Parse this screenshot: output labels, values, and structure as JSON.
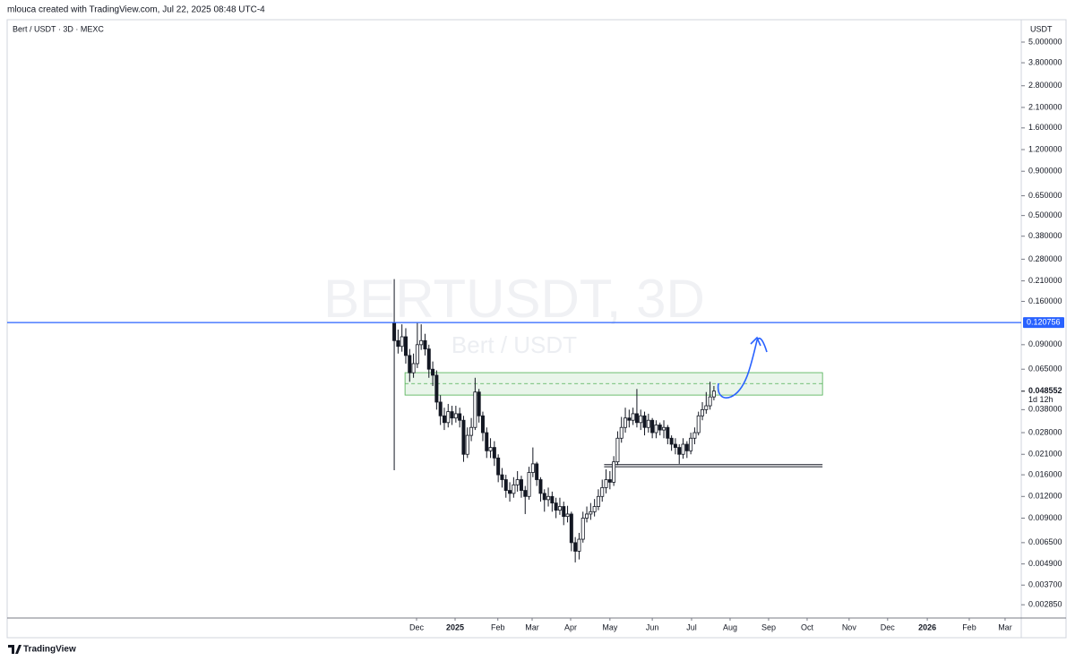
{
  "chart_data": {
    "type": "candlestick",
    "header": "mlouca created with TradingView.com, Jul 22, 2025 08:48 UTC-4",
    "title": "Bert / USDT · 3D · MEXC",
    "watermark": "BERTUSDT, 3D",
    "watermark_sub": "Bert / USDT",
    "currency": "USDT",
    "footer": "TradingView",
    "log_scale": true,
    "up_color": "#ffffff",
    "down_color": "#131722",
    "ylim": [
      0.00239,
      6.73
    ],
    "yticks": [
      {
        "value": 5,
        "label": "5.000000"
      },
      {
        "value": 3.8,
        "label": "3.800000"
      },
      {
        "value": 2.8,
        "label": "2.800000"
      },
      {
        "value": 2.1,
        "label": "2.100000"
      },
      {
        "value": 1.6,
        "label": "1.600000"
      },
      {
        "value": 1.2,
        "label": "1.200000"
      },
      {
        "value": 0.9,
        "label": "0.900000"
      },
      {
        "value": 0.65,
        "label": "0.650000"
      },
      {
        "value": 0.5,
        "label": "0.500000"
      },
      {
        "value": 0.38,
        "label": "0.380000"
      },
      {
        "value": 0.28,
        "label": "0.280000"
      },
      {
        "value": 0.21,
        "label": "0.210000"
      },
      {
        "value": 0.16,
        "label": "0.160000"
      },
      {
        "value": 0.09,
        "label": "0.090000"
      },
      {
        "value": 0.065,
        "label": "0.065000"
      },
      {
        "value": 0.038,
        "label": "0.038000"
      },
      {
        "value": 0.028,
        "label": "0.028000"
      },
      {
        "value": 0.021,
        "label": "0.021000"
      },
      {
        "value": 0.016,
        "label": "0.016000"
      },
      {
        "value": 0.012,
        "label": "0.012000"
      },
      {
        "value": 0.009,
        "label": "0.009000"
      },
      {
        "value": 0.0065,
        "label": "0.006500"
      },
      {
        "value": 0.0049,
        "label": "0.004900"
      },
      {
        "value": 0.0037,
        "label": "0.003700"
      },
      {
        "value": 0.00285,
        "label": "0.002850"
      }
    ],
    "xlim": [
      -100.5,
      162.8
    ],
    "xticks": [
      {
        "value": 5.8,
        "label": "Dec"
      },
      {
        "value": 15.8,
        "label": "2025"
      },
      {
        "value": 26.9,
        "label": "Feb"
      },
      {
        "value": 35.8,
        "label": "Mar"
      },
      {
        "value": 45.8,
        "label": "Apr"
      },
      {
        "value": 56.0,
        "label": "May"
      },
      {
        "value": 67.0,
        "label": "Jun"
      },
      {
        "value": 77.2,
        "label": "Jul"
      },
      {
        "value": 87.2,
        "label": "Aug"
      },
      {
        "value": 97.2,
        "label": "Sep"
      },
      {
        "value": 107.2,
        "label": "Oct"
      },
      {
        "value": 118.1,
        "label": "Nov"
      },
      {
        "value": 128.1,
        "label": "Dec"
      },
      {
        "value": 138.4,
        "label": "2026"
      },
      {
        "value": 149.3,
        "label": "Feb"
      },
      {
        "value": 158.6,
        "label": "Mar"
      }
    ],
    "open": [
      0.12,
      0.095,
      0.088,
      0.1,
      0.078,
      0.062,
      0.07,
      0.09,
      0.095,
      0.085,
      0.065,
      0.06,
      0.042,
      0.035,
      0.032,
      0.037,
      0.034,
      0.036,
      0.033,
      0.021,
      0.027,
      0.03,
      0.048,
      0.035,
      0.028,
      0.022,
      0.023,
      0.02,
      0.016,
      0.015,
      0.013,
      0.0125,
      0.014,
      0.015,
      0.013,
      0.012,
      0.0165,
      0.0185,
      0.015,
      0.0125,
      0.0115,
      0.012,
      0.011,
      0.01,
      0.0105,
      0.0092,
      0.0095,
      0.0065,
      0.0058,
      0.0068,
      0.009,
      0.0095,
      0.0098,
      0.0105,
      0.012,
      0.0135,
      0.015,
      0.0145,
      0.019,
      0.026,
      0.03,
      0.034,
      0.033,
      0.036,
      0.032,
      0.035,
      0.03,
      0.033,
      0.028,
      0.031,
      0.029,
      0.03,
      0.026,
      0.024,
      0.023,
      0.021,
      0.024,
      0.022,
      0.026,
      0.028,
      0.035,
      0.038,
      0.04,
      0.045
    ],
    "high": [
      0.215,
      0.11,
      0.118,
      0.112,
      0.085,
      0.08,
      0.12,
      0.118,
      0.104,
      0.09,
      0.072,
      0.064,
      0.046,
      0.039,
      0.041,
      0.04,
      0.04,
      0.039,
      0.035,
      0.03,
      0.034,
      0.058,
      0.05,
      0.037,
      0.03,
      0.026,
      0.025,
      0.021,
      0.0175,
      0.016,
      0.0145,
      0.0155,
      0.0168,
      0.0158,
      0.0138,
      0.0178,
      0.023,
      0.019,
      0.0155,
      0.0132,
      0.0135,
      0.0128,
      0.0118,
      0.0118,
      0.0112,
      0.0106,
      0.0098,
      0.007,
      0.0074,
      0.0098,
      0.0105,
      0.011,
      0.0116,
      0.0132,
      0.015,
      0.0172,
      0.0168,
      0.0205,
      0.0285,
      0.0345,
      0.039,
      0.038,
      0.039,
      0.05,
      0.038,
      0.037,
      0.036,
      0.034,
      0.033,
      0.032,
      0.033,
      0.031,
      0.027,
      0.026,
      0.024,
      0.026,
      0.025,
      0.028,
      0.03,
      0.037,
      0.042,
      0.048,
      0.055,
      0.052
    ],
    "low": [
      0.017,
      0.08,
      0.082,
      0.07,
      0.055,
      0.058,
      0.066,
      0.084,
      0.078,
      0.058,
      0.052,
      0.038,
      0.031,
      0.029,
      0.03,
      0.031,
      0.032,
      0.03,
      0.019,
      0.02,
      0.025,
      0.029,
      0.032,
      0.025,
      0.02,
      0.02,
      0.018,
      0.0145,
      0.0135,
      0.0118,
      0.0112,
      0.0118,
      0.0128,
      0.0118,
      0.0095,
      0.0115,
      0.0155,
      0.0138,
      0.0112,
      0.0098,
      0.0105,
      0.0098,
      0.009,
      0.0094,
      0.0082,
      0.0085,
      0.0058,
      0.005,
      0.0052,
      0.0065,
      0.0085,
      0.0088,
      0.0092,
      0.01,
      0.0112,
      0.0125,
      0.0132,
      0.0138,
      0.0182,
      0.0245,
      0.028,
      0.03,
      0.031,
      0.03,
      0.029,
      0.027,
      0.028,
      0.026,
      0.026,
      0.027,
      0.026,
      0.024,
      0.022,
      0.021,
      0.0185,
      0.0198,
      0.02,
      0.021,
      0.024,
      0.027,
      0.033,
      0.036,
      0.038,
      0.043
    ],
    "close": [
      0.095,
      0.088,
      0.1,
      0.078,
      0.062,
      0.07,
      0.09,
      0.095,
      0.085,
      0.065,
      0.06,
      0.042,
      0.035,
      0.032,
      0.037,
      0.034,
      0.036,
      0.033,
      0.021,
      0.027,
      0.03,
      0.048,
      0.035,
      0.028,
      0.022,
      0.023,
      0.02,
      0.016,
      0.015,
      0.013,
      0.0125,
      0.014,
      0.015,
      0.013,
      0.012,
      0.0165,
      0.0185,
      0.015,
      0.0125,
      0.0115,
      0.012,
      0.011,
      0.01,
      0.0105,
      0.0092,
      0.0095,
      0.0065,
      0.0058,
      0.0068,
      0.009,
      0.0095,
      0.0098,
      0.0105,
      0.012,
      0.0135,
      0.015,
      0.0145,
      0.019,
      0.026,
      0.03,
      0.034,
      0.033,
      0.036,
      0.032,
      0.035,
      0.03,
      0.033,
      0.028,
      0.031,
      0.029,
      0.03,
      0.026,
      0.024,
      0.023,
      0.021,
      0.024,
      0.022,
      0.026,
      0.028,
      0.035,
      0.038,
      0.04,
      0.045,
      0.0486
    ],
    "level_line": {
      "value": 0.120756,
      "label": "0.120756",
      "color": "#2962ff"
    },
    "last_price": {
      "value": 0.048552,
      "label": "0.048552",
      "countdown": "1d 12h"
    },
    "zone": {
      "top": 0.0621,
      "bottom": 0.0461,
      "mid": 0.0537,
      "start": 2.8,
      "end": 111.2,
      "color": "#4caf50"
    },
    "support_lines": {
      "values": [
        0.0183,
        0.0178
      ],
      "start": 54.5,
      "end": 111.2,
      "color": "#131722"
    }
  }
}
